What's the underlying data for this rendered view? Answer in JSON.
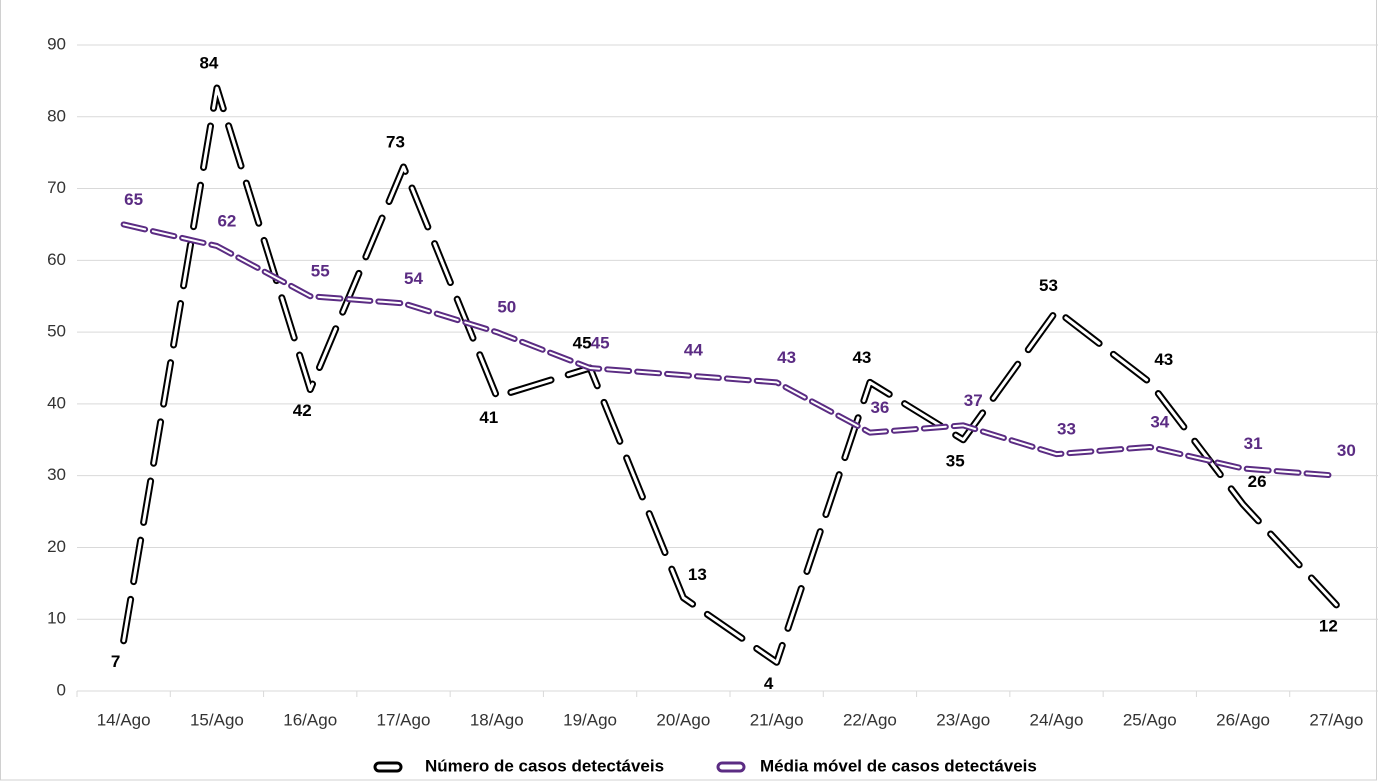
{
  "chart_data": {
    "type": "line",
    "categories": [
      "14/Ago",
      "15/Ago",
      "16/Ago",
      "17/Ago",
      "18/Ago",
      "19/Ago",
      "20/Ago",
      "21/Ago",
      "22/Ago",
      "23/Ago",
      "24/Ago",
      "25/Ago",
      "26/Ago",
      "27/Ago"
    ],
    "series": [
      {
        "name": "Número de casos detectáveis",
        "color": "#000000",
        "values": [
          7,
          84,
          42,
          73,
          41,
          45,
          13,
          4,
          43,
          35,
          53,
          43,
          26,
          12
        ]
      },
      {
        "name": "Média móvel de casos detectáveis",
        "color": "#5b2c83",
        "values": [
          65,
          62,
          55,
          54,
          50,
          45,
          44,
          43,
          36,
          37,
          33,
          34,
          31,
          30
        ]
      }
    ],
    "ylim": [
      0,
      90
    ],
    "yticks": [
      0,
      10,
      20,
      30,
      40,
      50,
      60,
      70,
      80,
      90
    ],
    "grid": true,
    "legend": "bottom"
  }
}
